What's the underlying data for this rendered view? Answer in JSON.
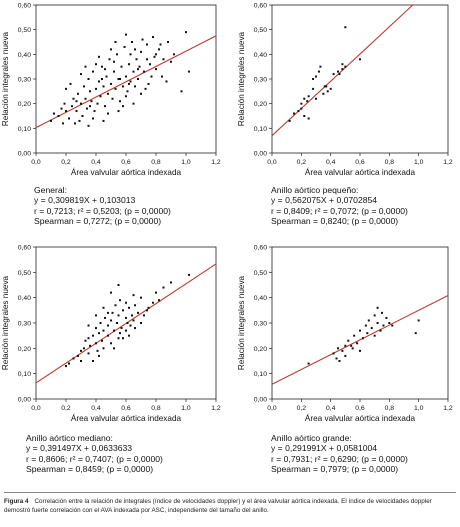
{
  "chart_data": [
    {
      "type": "scatter",
      "title": "",
      "xlabel": "Área valvular aórtica indexada",
      "ylabel": "Relación integrales nueva",
      "xlim": [
        0.0,
        1.2
      ],
      "ylim": [
        0.0,
        0.6
      ],
      "xticks": [
        "0,0",
        "0,2",
        "0,4",
        "0,6",
        "0,8",
        "1,0",
        "1,2"
      ],
      "yticks": [
        "0,00",
        "0,10",
        "0,20",
        "0,30",
        "0,40",
        "0,50",
        "0,60"
      ],
      "regression": {
        "slope": 0.309819,
        "intercept": 0.103013,
        "x0": 0.0,
        "x1": 1.2
      },
      "points": [
        [
          0.1,
          0.13
        ],
        [
          0.15,
          0.15
        ],
        [
          0.17,
          0.18
        ],
        [
          0.19,
          0.2
        ],
        [
          0.2,
          0.17
        ],
        [
          0.22,
          0.14
        ],
        [
          0.24,
          0.19
        ],
        [
          0.25,
          0.22
        ],
        [
          0.26,
          0.12
        ],
        [
          0.27,
          0.17
        ],
        [
          0.28,
          0.24
        ],
        [
          0.3,
          0.2
        ],
        [
          0.31,
          0.15
        ],
        [
          0.32,
          0.27
        ],
        [
          0.33,
          0.22
        ],
        [
          0.34,
          0.18
        ],
        [
          0.35,
          0.3
        ],
        [
          0.36,
          0.25
        ],
        [
          0.37,
          0.21
        ],
        [
          0.38,
          0.33
        ],
        [
          0.39,
          0.17
        ],
        [
          0.4,
          0.26
        ],
        [
          0.41,
          0.2
        ],
        [
          0.42,
          0.29
        ],
        [
          0.43,
          0.23
        ],
        [
          0.44,
          0.35
        ],
        [
          0.45,
          0.27
        ],
        [
          0.46,
          0.19
        ],
        [
          0.47,
          0.31
        ],
        [
          0.48,
          0.24
        ],
        [
          0.49,
          0.38
        ],
        [
          0.5,
          0.28
        ],
        [
          0.51,
          0.22
        ],
        [
          0.52,
          0.33
        ],
        [
          0.53,
          0.26
        ],
        [
          0.54,
          0.4
        ],
        [
          0.55,
          0.3
        ],
        [
          0.56,
          0.21
        ],
        [
          0.57,
          0.35
        ],
        [
          0.58,
          0.27
        ],
        [
          0.59,
          0.43
        ],
        [
          0.6,
          0.31
        ],
        [
          0.61,
          0.25
        ],
        [
          0.62,
          0.36
        ],
        [
          0.63,
          0.29
        ],
        [
          0.64,
          0.45
        ],
        [
          0.65,
          0.33
        ],
        [
          0.66,
          0.27
        ],
        [
          0.67,
          0.38
        ],
        [
          0.68,
          0.3
        ],
        [
          0.7,
          0.41
        ],
        [
          0.72,
          0.33
        ],
        [
          0.74,
          0.44
        ],
        [
          0.76,
          0.36
        ],
        [
          0.78,
          0.47
        ],
        [
          0.8,
          0.34
        ],
        [
          0.82,
          0.42
        ],
        [
          0.85,
          0.38
        ],
        [
          0.88,
          0.45
        ],
        [
          0.92,
          0.4
        ],
        [
          1.0,
          0.49
        ],
        [
          1.02,
          0.33
        ],
        [
          0.2,
          0.26
        ],
        [
          0.3,
          0.32
        ],
        [
          0.4,
          0.36
        ],
        [
          0.5,
          0.42
        ],
        [
          0.6,
          0.48
        ],
        [
          0.45,
          0.13
        ],
        [
          0.55,
          0.17
        ],
        [
          0.7,
          0.24
        ],
        [
          0.35,
          0.11
        ],
        [
          0.65,
          0.2
        ],
        [
          0.75,
          0.28
        ],
        [
          0.12,
          0.16
        ],
        [
          0.18,
          0.12
        ],
        [
          0.23,
          0.28
        ],
        [
          0.29,
          0.13
        ],
        [
          0.38,
          0.14
        ],
        [
          0.42,
          0.39
        ],
        [
          0.48,
          0.16
        ],
        [
          0.53,
          0.45
        ],
        [
          0.58,
          0.19
        ],
        [
          0.63,
          0.4
        ],
        [
          0.69,
          0.35
        ],
        [
          0.73,
          0.26
        ],
        [
          0.79,
          0.39
        ],
        [
          0.84,
          0.31
        ],
        [
          0.9,
          0.37
        ],
        [
          0.97,
          0.25
        ],
        [
          0.33,
          0.35
        ],
        [
          0.44,
          0.3
        ],
        [
          0.52,
          0.37
        ],
        [
          0.6,
          0.23
        ],
        [
          0.66,
          0.42
        ],
        [
          0.71,
          0.46
        ],
        [
          0.77,
          0.31
        ],
        [
          0.83,
          0.44
        ],
        [
          0.87,
          0.29
        ],
        [
          0.27,
          0.21
        ],
        [
          0.36,
          0.19
        ],
        [
          0.46,
          0.34
        ],
        [
          0.56,
          0.3
        ],
        [
          0.62,
          0.28
        ],
        [
          0.68,
          0.34
        ],
        [
          0.74,
          0.38
        ],
        [
          0.8,
          0.4
        ]
      ]
    },
    {
      "type": "scatter",
      "title": "",
      "xlabel": "Área valvular aórtica indexada",
      "ylabel": "Relación integrales nueva",
      "xlim": [
        0.0,
        1.2
      ],
      "ylim": [
        0.0,
        0.6
      ],
      "xticks": [
        "0,0",
        "0,2",
        "0,4",
        "0,6",
        "0,8",
        "1,0",
        "1,2"
      ],
      "yticks": [
        "0,00",
        "0,10",
        "0,20",
        "0,30",
        "0,40",
        "0,50",
        "0,60"
      ],
      "regression": {
        "slope": 0.562075,
        "intercept": 0.0702854,
        "x0": 0.0,
        "x1": 0.96
      },
      "points": [
        [
          0.12,
          0.13
        ],
        [
          0.15,
          0.16
        ],
        [
          0.18,
          0.17
        ],
        [
          0.2,
          0.2
        ],
        [
          0.2,
          0.18
        ],
        [
          0.22,
          0.22
        ],
        [
          0.22,
          0.15
        ],
        [
          0.24,
          0.21
        ],
        [
          0.25,
          0.23
        ],
        [
          0.28,
          0.3
        ],
        [
          0.3,
          0.31
        ],
        [
          0.3,
          0.22
        ],
        [
          0.32,
          0.33
        ],
        [
          0.35,
          0.24
        ],
        [
          0.37,
          0.27
        ],
        [
          0.38,
          0.25
        ],
        [
          0.4,
          0.26
        ],
        [
          0.42,
          0.32
        ],
        [
          0.45,
          0.33
        ],
        [
          0.48,
          0.36
        ],
        [
          0.48,
          0.34
        ],
        [
          0.5,
          0.51
        ],
        [
          0.5,
          0.35
        ],
        [
          0.25,
          0.14
        ],
        [
          0.28,
          0.26
        ],
        [
          0.33,
          0.35
        ],
        [
          0.36,
          0.27
        ],
        [
          0.6,
          0.38
        ],
        [
          0.46,
          0.32
        ]
      ]
    },
    {
      "type": "scatter",
      "title": "",
      "xlabel": "Área valvular aórtica indexada",
      "ylabel": "Relación integrales nueva",
      "xlim": [
        0.0,
        1.2
      ],
      "ylim": [
        0.0,
        0.6
      ],
      "xticks": [
        "0,0",
        "0,2",
        "0,4",
        "0,6",
        "0,8",
        "1,0",
        "1,2"
      ],
      "yticks": [
        "0,00",
        "0,10",
        "0,20",
        "0,30",
        "0,40",
        "0,50",
        "0,60"
      ],
      "regression": {
        "slope": 0.391497,
        "intercept": 0.0633633,
        "x0": 0.0,
        "x1": 1.2
      },
      "points": [
        [
          0.2,
          0.13
        ],
        [
          0.22,
          0.14
        ],
        [
          0.25,
          0.16
        ],
        [
          0.28,
          0.17
        ],
        [
          0.3,
          0.19
        ],
        [
          0.3,
          0.15
        ],
        [
          0.32,
          0.2
        ],
        [
          0.33,
          0.23
        ],
        [
          0.35,
          0.18
        ],
        [
          0.35,
          0.24
        ],
        [
          0.36,
          0.21
        ],
        [
          0.38,
          0.25
        ],
        [
          0.4,
          0.22
        ],
        [
          0.4,
          0.28
        ],
        [
          0.41,
          0.19
        ],
        [
          0.42,
          0.26
        ],
        [
          0.43,
          0.3
        ],
        [
          0.44,
          0.23
        ],
        [
          0.45,
          0.27
        ],
        [
          0.45,
          0.2
        ],
        [
          0.46,
          0.32
        ],
        [
          0.48,
          0.25
        ],
        [
          0.48,
          0.29
        ],
        [
          0.5,
          0.31
        ],
        [
          0.5,
          0.22
        ],
        [
          0.51,
          0.34
        ],
        [
          0.52,
          0.27
        ],
        [
          0.53,
          0.37
        ],
        [
          0.54,
          0.3
        ],
        [
          0.55,
          0.24
        ],
        [
          0.55,
          0.33
        ],
        [
          0.56,
          0.39
        ],
        [
          0.57,
          0.28
        ],
        [
          0.58,
          0.35
        ],
        [
          0.6,
          0.32
        ],
        [
          0.6,
          0.27
        ],
        [
          0.61,
          0.3
        ],
        [
          0.62,
          0.36
        ],
        [
          0.63,
          0.29
        ],
        [
          0.64,
          0.33
        ],
        [
          0.65,
          0.31
        ],
        [
          0.66,
          0.28
        ],
        [
          0.68,
          0.34
        ],
        [
          0.7,
          0.3
        ],
        [
          0.72,
          0.33
        ],
        [
          0.75,
          0.36
        ],
        [
          0.78,
          0.38
        ],
        [
          0.8,
          0.42
        ],
        [
          0.85,
          0.44
        ],
        [
          0.9,
          0.46
        ],
        [
          1.02,
          0.49
        ],
        [
          0.5,
          0.42
        ],
        [
          0.55,
          0.45
        ],
        [
          0.6,
          0.38
        ],
        [
          0.65,
          0.41
        ],
        [
          0.7,
          0.4
        ],
        [
          0.45,
          0.36
        ],
        [
          0.4,
          0.33
        ],
        [
          0.35,
          0.29
        ],
        [
          0.52,
          0.2
        ],
        [
          0.58,
          0.24
        ],
        [
          0.62,
          0.25
        ],
        [
          0.42,
          0.17
        ],
        [
          0.38,
          0.15
        ],
        [
          0.48,
          0.34
        ],
        [
          0.56,
          0.26
        ],
        [
          0.66,
          0.37
        ],
        [
          0.74,
          0.35
        ],
        [
          0.82,
          0.39
        ]
      ]
    },
    {
      "type": "scatter",
      "title": "",
      "xlabel": "Área valvular aórtica indexada",
      "ylabel": "Relación integrales nueva",
      "xlim": [
        0.0,
        1.2
      ],
      "ylim": [
        0.0,
        0.6
      ],
      "xticks": [
        "0,0",
        "0,2",
        "0,4",
        "0,6",
        "0,8",
        "1,0",
        "1,2"
      ],
      "yticks": [
        "0,00",
        "0,10",
        "0,20",
        "0,30",
        "0,40",
        "0,50",
        "0,60"
      ],
      "regression": {
        "slope": 0.291991,
        "intercept": 0.0581004,
        "x0": 0.0,
        "x1": 1.2
      },
      "points": [
        [
          0.25,
          0.14
        ],
        [
          0.42,
          0.18
        ],
        [
          0.44,
          0.16
        ],
        [
          0.45,
          0.2
        ],
        [
          0.46,
          0.15
        ],
        [
          0.48,
          0.19
        ],
        [
          0.5,
          0.21
        ],
        [
          0.5,
          0.17
        ],
        [
          0.52,
          0.23
        ],
        [
          0.55,
          0.2
        ],
        [
          0.56,
          0.25
        ],
        [
          0.58,
          0.22
        ],
        [
          0.6,
          0.27
        ],
        [
          0.62,
          0.24
        ],
        [
          0.64,
          0.29
        ],
        [
          0.65,
          0.26
        ],
        [
          0.66,
          0.31
        ],
        [
          0.68,
          0.28
        ],
        [
          0.7,
          0.33
        ],
        [
          0.7,
          0.25
        ],
        [
          0.72,
          0.3
        ],
        [
          0.74,
          0.27
        ],
        [
          0.75,
          0.34
        ],
        [
          0.76,
          0.29
        ],
        [
          0.78,
          0.32
        ],
        [
          0.8,
          0.3
        ],
        [
          0.82,
          0.29
        ],
        [
          0.72,
          0.36
        ],
        [
          0.98,
          0.26
        ],
        [
          1.0,
          0.31
        ],
        [
          0.6,
          0.19
        ],
        [
          0.54,
          0.21
        ]
      ]
    }
  ],
  "stats": [
    {
      "l1": "General:",
      "l2": "y = 0,309819X + 0,103013",
      "l3": "r = 0,7213; r² = 0,5203; (p = 0,0000)",
      "l4": "Spearman = 0,7272; (p = 0,0000)"
    },
    {
      "l1": "Anillo aórtico pequeño:",
      "l2": "y = 0,562075X + 0,0702854",
      "l3": "r = 0,8409; r² = 0,7072; (p = 0,0000)",
      "l4": "Spearman = 0,8240; (p = 0,0000)"
    },
    {
      "l1": "Anillo aórtico mediano:",
      "l2": "y = 0,391497X + 0,0633633",
      "l3": "r = 0,8606; r² = 0,7407; (p = 0,0000)",
      "l4": "Spearman = 0,8459; (p = 0,0000)"
    },
    {
      "l1": "Anillo aórtico grande:",
      "l2": "y = 0,291991X + 0,0581004",
      "l3": "r = 0,7931; r² = 0,6290; (p = 0,0000)",
      "l4": "Spearman = 0,7979; (p = 0,0000)"
    }
  ],
  "caption": {
    "label": "Figura 4",
    "text": "Correlación entre la relación de integrales (índice de velocidades doppler) y el área valvular aórtica indexada. El índice de velocidades doppler demostró fuerte correlación con el AVA indexada por ASC, independiente del tamaño del anillo."
  },
  "colors": {
    "line": "#c0392b",
    "point": "#111111",
    "axis": "#222222",
    "caption_label": "#222222"
  }
}
